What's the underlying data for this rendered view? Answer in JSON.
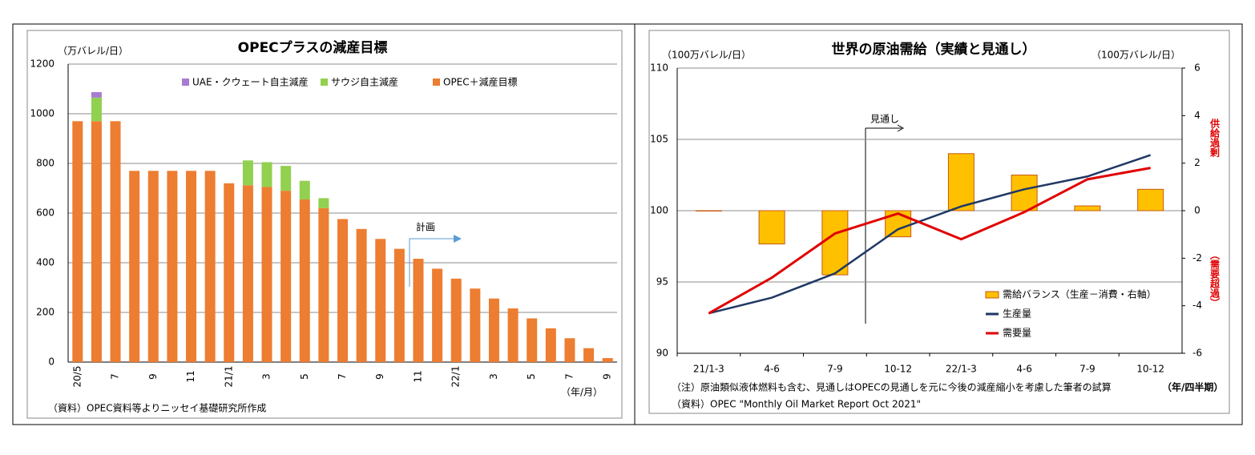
{
  "chart_data": [
    {
      "type": "stacked_bar",
      "title": "OPECプラスの減産目標",
      "y_label": "（万バレル/日）",
      "x_label": "（年/月）",
      "source": "（資料）OPEC資料等よりニッセイ基礎研究所作成",
      "annotation": "計画",
      "categories": [
        "20/5",
        null,
        "7",
        null,
        "9",
        null,
        "11",
        null,
        "21/1",
        null,
        "3",
        null,
        "5",
        null,
        "7",
        null,
        "9",
        null,
        "11",
        null,
        "22/1",
        null,
        "3",
        null,
        "5",
        null,
        "7",
        null,
        "9"
      ],
      "series": [
        {
          "name": "OPEC＋減産目標",
          "color": "#ed7d31",
          "values": [
            970,
            970,
            970,
            770,
            770,
            770,
            770,
            770,
            720,
            712,
            705,
            690,
            655,
            620,
            576,
            536,
            496,
            456,
            416,
            376,
            336,
            296,
            256,
            216,
            176,
            136,
            96,
            56,
            16
          ]
        },
        {
          "name": "サウジ自主減産",
          "color": "#92d050",
          "values": [
            null,
            95,
            null,
            null,
            null,
            null,
            null,
            null,
            null,
            100,
            100,
            100,
            75,
            40,
            null,
            null,
            null,
            null,
            null,
            null,
            null,
            null,
            null,
            null,
            null,
            null,
            null,
            null,
            null
          ]
        },
        {
          "name": "UAE・クウェート自主減産",
          "color": "#a67cd0",
          "values": [
            null,
            22,
            null,
            null,
            null,
            null,
            null,
            null,
            null,
            null,
            null,
            null,
            null,
            null,
            null,
            null,
            null,
            null,
            null,
            null,
            null,
            null,
            null,
            null,
            null,
            null,
            null,
            null,
            null
          ]
        }
      ],
      "ylim": [
        0,
        1200
      ],
      "yticks": [
        0,
        200,
        400,
        600,
        800,
        1000,
        1200
      ],
      "grid": true
    },
    {
      "type": "combo",
      "title": "世界の原油需給（実績と見通し）",
      "y_label": "（100万バレル/日）",
      "y2_label": "（100万バレル/日）",
      "y2_label_top": "供給過剰",
      "y2_label_bottom": "（需要超過）",
      "x_label": "（年/四半期）",
      "note": "（注）原油類似液体燃料も含む、見通しはOPECの見通しを元に今後の減産縮小を考慮した筆者の試算",
      "source": "（資料）OPEC \"Monthly Oil Market Report Oct 2021\"",
      "annotation": "見通し",
      "categories": [
        "21/1-3",
        "4-6",
        "7-9",
        "10-12",
        "22/1-3",
        "4-6",
        "7-9",
        "10-12"
      ],
      "series": [
        {
          "name": "需給バランス（生産－消費・右軸）",
          "type": "bar",
          "axis": "y2",
          "color": "#ffc000",
          "values": [
            0.0,
            -1.4,
            -2.7,
            -1.1,
            2.4,
            1.5,
            0.2,
            0.9
          ]
        },
        {
          "name": "生産量",
          "type": "line",
          "color": "#1f3864",
          "values": [
            92.8,
            93.9,
            95.6,
            98.7,
            100.3,
            101.5,
            102.4,
            103.9
          ]
        },
        {
          "name": "需要量",
          "type": "line",
          "color": "#e00000",
          "values": [
            92.8,
            95.3,
            98.4,
            99.8,
            98.0,
            99.9,
            102.2,
            103.0
          ]
        }
      ],
      "ylim": [
        90,
        110
      ],
      "yticks": [
        90,
        95,
        100,
        105,
        110
      ],
      "y2lim": [
        -6,
        6
      ],
      "y2ticks": [
        -6,
        -4,
        -2,
        0,
        2,
        4,
        6
      ],
      "grid": true
    }
  ]
}
